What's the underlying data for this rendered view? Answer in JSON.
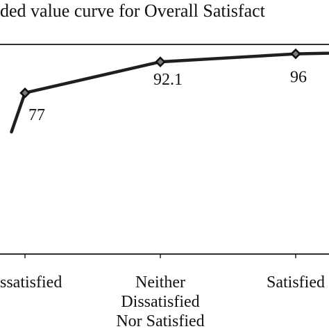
{
  "chart_data": {
    "type": "line",
    "title": "ded value curve for Overall Satisfact",
    "categories": [
      "ssatisfied",
      "Neither Dissatisfied Nor Satisfied",
      "Satisfied"
    ],
    "category_lines": [
      [
        "ssatisfied"
      ],
      [
        "Neither",
        "Dissatisfied",
        "Nor Satisfied"
      ],
      [
        "Satisfied"
      ]
    ],
    "x": [
      0,
      0.5,
      1,
      2,
      3,
      4
    ],
    "values": [
      58,
      77,
      null,
      92.1,
      96,
      98
    ],
    "series": [
      {
        "name": "",
        "x": [
          -0.1,
          0,
          1,
          2,
          3.45
        ],
        "values": [
          58,
          77,
          92.1,
          96,
          98
        ]
      }
    ],
    "value_labels": [
      {
        "text": "77",
        "x": 0,
        "y": 77
      },
      {
        "text": "92.1",
        "x": 1,
        "y": 92.1
      },
      {
        "text": "96",
        "x": 2,
        "y": 96
      }
    ],
    "ylim": [
      0,
      100
    ],
    "grid": false,
    "colors": {
      "line": "#1f1f1f",
      "marker_fill": "#7a7a7a",
      "marker_stroke": "#111111",
      "axis": "#111111"
    }
  }
}
